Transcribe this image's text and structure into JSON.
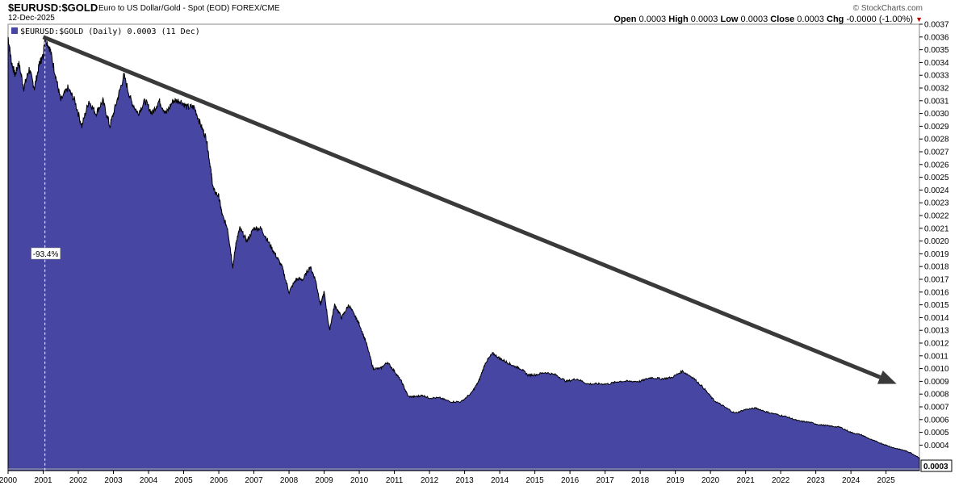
{
  "header": {
    "symbol": "$EURUSD:$GOLD",
    "description": "Euro to US Dollar/Gold - Spot (EOD) FOREX/CME",
    "date": "12-Dec-2025",
    "logo": "© StockCharts.com",
    "ohlc": {
      "open_label": "Open",
      "open": "0.0003",
      "high_label": "High",
      "high": "0.0003",
      "low_label": "Low",
      "low": "0.0003",
      "close_label": "Close",
      "close": "0.0003",
      "chg_label": "Chg",
      "chg": "-0.0000 (-1.00%)"
    },
    "chg_icon": "down-triangle-icon",
    "down_color": "#b00000"
  },
  "legend": {
    "text": "$EURUSD:$GOLD (Daily) 0.0003 (11 Dec)"
  },
  "annotations": {
    "pct_label": "-93.4%",
    "last_value": "0.0003"
  },
  "chart_data": {
    "type": "area",
    "series_color": "#4747a3",
    "grid": false,
    "ylim": [
      0.0002,
      0.0037
    ],
    "xlim": [
      2000.0,
      2025.95
    ],
    "y_ticks": [
      "0.0037",
      "0.0036",
      "0.0035",
      "0.0034",
      "0.0033",
      "0.0032",
      "0.0031",
      "0.0030",
      "0.0029",
      "0.0028",
      "0.0027",
      "0.0026",
      "0.0025",
      "0.0024",
      "0.0023",
      "0.0022",
      "0.0021",
      "0.0020",
      "0.0019",
      "0.0018",
      "0.0017",
      "0.0016",
      "0.0015",
      "0.0014",
      "0.0013",
      "0.0012",
      "0.0011",
      "0.0010",
      "0.0009",
      "0.0008",
      "0.0007",
      "0.0006",
      "0.0005",
      "0.0004"
    ],
    "x_ticks": [
      "2000",
      "2001",
      "2002",
      "2003",
      "2004",
      "2005",
      "2006",
      "2007",
      "2008",
      "2009",
      "2010",
      "2011",
      "2012",
      "2013",
      "2014",
      "2015",
      "2016",
      "2017",
      "2018",
      "2019",
      "2020",
      "2021",
      "2022",
      "2023",
      "2024",
      "2025"
    ],
    "series": [
      {
        "x": [
          2000.0,
          2000.1,
          2000.2,
          2000.3,
          2000.45,
          2000.6,
          2000.75,
          2000.9,
          2001.0,
          2001.05,
          2001.2,
          2001.35,
          2001.5,
          2001.7,
          2001.9,
          2002.1,
          2002.3,
          2002.5,
          2002.7,
          2002.9,
          2003.1,
          2003.3,
          2003.5,
          2003.7,
          2003.9,
          2004.1,
          2004.3,
          2004.5,
          2004.7,
          2004.9,
          2005.1,
          2005.3,
          2005.5,
          2005.65,
          2005.75,
          2005.85,
          2006.0,
          2006.1,
          2006.25,
          2006.4,
          2006.5,
          2006.6,
          2006.8,
          2007.0,
          2007.2,
          2007.4,
          2007.6,
          2007.8,
          2008.0,
          2008.2,
          2008.4,
          2008.6,
          2008.75,
          2008.9,
          2009.0,
          2009.15,
          2009.3,
          2009.5,
          2009.7,
          2009.9,
          2010.0,
          2010.2,
          2010.4,
          2010.6,
          2010.8,
          2011.0,
          2011.2,
          2011.4,
          2011.6,
          2011.8,
          2012.0,
          2012.3,
          2012.6,
          2012.9,
          2013.2,
          2013.4,
          2013.6,
          2013.8,
          2014.0,
          2014.2,
          2014.4,
          2014.6,
          2014.8,
          2015.0,
          2015.3,
          2015.6,
          2015.9,
          2016.2,
          2016.5,
          2016.8,
          2017.1,
          2017.4,
          2017.7,
          2018.0,
          2018.3,
          2018.6,
          2018.9,
          2019.2,
          2019.5,
          2019.8,
          2020.1,
          2020.4,
          2020.7,
          2021.0,
          2021.3,
          2021.6,
          2021.9,
          2022.2,
          2022.5,
          2022.8,
          2023.1,
          2023.4,
          2023.7,
          2024.0,
          2024.3,
          2024.6,
          2024.9,
          2025.2,
          2025.5,
          2025.7,
          2025.95
        ],
        "values": [
          0.0036,
          0.0034,
          0.0033,
          0.0034,
          0.0032,
          0.00335,
          0.0032,
          0.0034,
          0.00345,
          0.0036,
          0.0035,
          0.0033,
          0.0031,
          0.0032,
          0.0031,
          0.0029,
          0.0031,
          0.003,
          0.0031,
          0.0029,
          0.0031,
          0.0033,
          0.0031,
          0.003,
          0.0031,
          0.003,
          0.0031,
          0.003,
          0.0031,
          0.0031,
          0.00305,
          0.00305,
          0.0029,
          0.0028,
          0.0026,
          0.0024,
          0.00235,
          0.0022,
          0.0021,
          0.0018,
          0.002,
          0.0021,
          0.002,
          0.0021,
          0.0021,
          0.002,
          0.0019,
          0.0018,
          0.0016,
          0.0017,
          0.0017,
          0.0018,
          0.0017,
          0.0015,
          0.0016,
          0.0013,
          0.0015,
          0.0014,
          0.0015,
          0.0014,
          0.00135,
          0.0012,
          0.001,
          0.001,
          0.00105,
          0.00098,
          0.0009,
          0.00078,
          0.00078,
          0.00079,
          0.00077,
          0.00077,
          0.00074,
          0.00074,
          0.00081,
          0.0009,
          0.00105,
          0.00112,
          0.00108,
          0.00105,
          0.00102,
          0.001,
          0.00095,
          0.00095,
          0.00097,
          0.00095,
          0.0009,
          0.00092,
          0.00088,
          0.00088,
          0.00088,
          0.0009,
          0.0009,
          0.0009,
          0.00093,
          0.00092,
          0.00093,
          0.00098,
          0.00093,
          0.00085,
          0.00075,
          0.0007,
          0.00065,
          0.00068,
          0.00069,
          0.00066,
          0.00064,
          0.00062,
          0.00059,
          0.00058,
          0.00056,
          0.00055,
          0.00054,
          0.0005,
          0.00048,
          0.00044,
          0.00041,
          0.00038,
          0.00036,
          0.00034,
          0.0003
        ]
      }
    ],
    "trendline": {
      "x1": 2001.0,
      "y1": 0.0036,
      "x2": 2025.3,
      "y2": 0.00088
    },
    "marker_x": 2001.05
  }
}
